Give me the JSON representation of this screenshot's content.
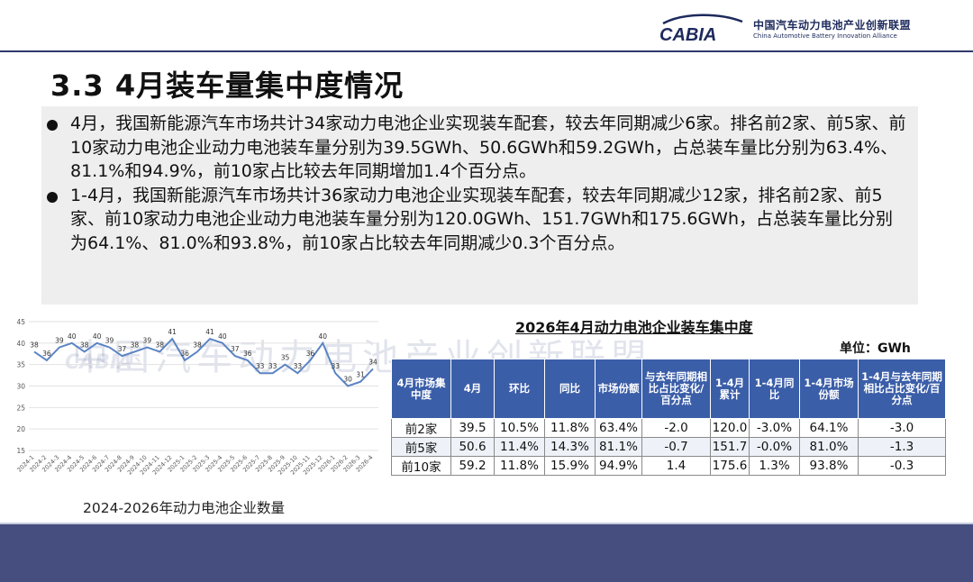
{
  "header": {
    "logo_word": "CABIA",
    "org_cn": "中国汽车动力电池产业创新联盟",
    "org_en": "China Automotive Battery Innovation Alliance"
  },
  "title": "3.3 4月装车量集中度情况",
  "bullets": [
    "4月，我国新能源汽车市场共计34家动力电池企业实现装车配套，较去年同期减少6家。排名前2家、前5家、前10家动力电池企业动力电池装车量分别为39.5GWh、50.6GWh和59.2GWh，占总装车量比分别为63.4%、81.1%和94.9%，前10家占比较去年同期增加1.4个百分点。",
    "1-4月，我国新能源汽车市场共计36家动力电池企业实现装车配套，较去年同期减少12家，排名前2家、前5家、前10家动力电池企业动力电池装车量分别为120.0GWh、151.7GWh和175.6GWh，占总装车量比分别为64.1%、81.0%和93.8%，前10家占比较去年同期减少0.3个百分点。"
  ],
  "watermark": "中国汽车动力电池产业创新联盟",
  "chart_caption": "2024-2026年动力电池企业数量",
  "chart_data": {
    "type": "line",
    "title": "",
    "xlabel": "",
    "ylabel": "",
    "ylim": [
      15,
      45
    ],
    "yticks": [
      15,
      20,
      25,
      30,
      35,
      40,
      45
    ],
    "grid": true,
    "legend": "none",
    "x": [
      "2024-1",
      "2024-2",
      "2024-3",
      "2024-4",
      "2024-5",
      "2024-6",
      "2024-7",
      "2024-8",
      "2024-9",
      "2024-10",
      "2024-11",
      "2024-12",
      "2025-1",
      "2025-2",
      "2025-3",
      "2025-4",
      "2025-5",
      "2025-6",
      "2025-7",
      "2025-8",
      "2025-9",
      "2025-10",
      "2025-11",
      "2025-12",
      "2026-1",
      "2026-2",
      "2026-3",
      "2026-4"
    ],
    "series": [
      {
        "values": [
          38,
          36,
          39,
          40,
          38,
          40,
          39,
          37,
          38,
          39,
          38,
          41,
          36,
          38,
          41,
          40,
          37,
          36,
          33,
          33,
          35,
          33,
          36,
          40,
          33,
          30,
          31,
          34
        ],
        "color": "#5b84c4"
      }
    ],
    "data_labels": true
  },
  "table": {
    "title": "2026年4月动力电池企业装车集中度",
    "unit": "单位：GWh",
    "headers": [
      "4月市场集中度",
      "4月",
      "环比",
      "同比",
      "市场份额",
      "与去年同期相比占比变化/百分点",
      "1-4月累计",
      "1-4月同比",
      "1-4月市场份额",
      "1-4月与去年同期相比占比变化/百分点"
    ],
    "rows": [
      [
        "前2家",
        "39.5",
        "10.5%",
        "11.8%",
        "63.4%",
        "-2.0",
        "120.0",
        "-3.0%",
        "64.1%",
        "-3.0"
      ],
      [
        "前5家",
        "50.6",
        "11.4%",
        "14.3%",
        "81.1%",
        "-0.7",
        "151.7",
        "-0.0%",
        "81.0%",
        "-1.3"
      ],
      [
        "前10家",
        "59.2",
        "11.8%",
        "15.9%",
        "94.9%",
        "1.4",
        "175.6",
        "1.3%",
        "93.8%",
        "-0.3"
      ]
    ]
  },
  "colors": {
    "footer": "#454e7e",
    "header_blue": "#3b5ea8",
    "line": "#5b84c4"
  }
}
